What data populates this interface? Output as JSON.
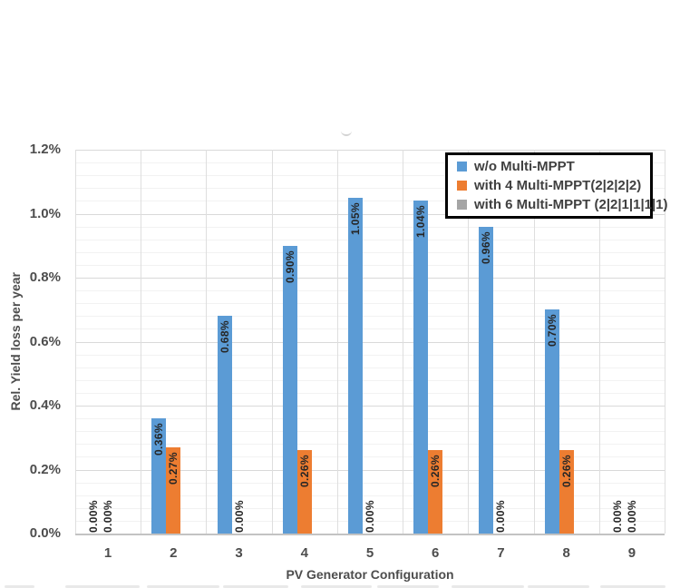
{
  "chart_data": {
    "type": "bar",
    "title": "",
    "xlabel": "PV Generator Configuration",
    "ylabel": "Rel. Yield loss per year",
    "categories": [
      "1",
      "2",
      "3",
      "4",
      "5",
      "6",
      "7",
      "8",
      "9"
    ],
    "series": [
      {
        "name": "w/o Multi-MPPT",
        "color": "#5B9BD5",
        "values": [
          0.0,
          0.36,
          0.68,
          0.9,
          1.05,
          1.04,
          0.96,
          0.7,
          0.0
        ],
        "data_labels": [
          "0.00%",
          "0.36%",
          "0.68%",
          "0.90%",
          "1.05%",
          "1.04%",
          "0.96%",
          "0.70%",
          "0.00%"
        ],
        "labels_visible": true
      },
      {
        "name": "with 4 Multi-MPPT(2|2|2|2)",
        "color": "#ED7D31",
        "values": [
          0.0,
          0.27,
          0.0,
          0.26,
          0.0,
          0.26,
          0.0,
          0.26,
          0.0
        ],
        "data_labels": [
          "0.00%",
          "0.27%",
          "0.00%",
          "0.26%",
          "0.00%",
          "0.26%",
          "0.00%",
          "0.26%",
          "0.00%"
        ],
        "labels_visible": true
      },
      {
        "name": "with 6 Multi-MPPT (2|2|1|1|1|1)",
        "color": "#A5A5A5",
        "values": [
          0,
          0,
          0,
          0,
          0,
          0,
          0,
          0,
          0
        ],
        "data_labels": null,
        "labels_visible": false
      }
    ],
    "y_ticks": [
      "0.0%",
      "0.2%",
      "0.4%",
      "0.6%",
      "0.8%",
      "1.0%",
      "1.2%"
    ],
    "ylim": [
      0,
      1.2
    ],
    "major_unit": 0.2,
    "minor_unit": 0.04,
    "grid": true,
    "legend_position": "inside-top-right",
    "colors": {
      "grid_major": "#d9d9d9",
      "grid_minor": "#f2f2f2",
      "grid_vertical": "#dedede",
      "axis_line": "#c3c3c3",
      "tick_text": "#4d4d4d",
      "label_text": "#262626",
      "legend_border": "#000000",
      "background": "#ffffff"
    }
  }
}
